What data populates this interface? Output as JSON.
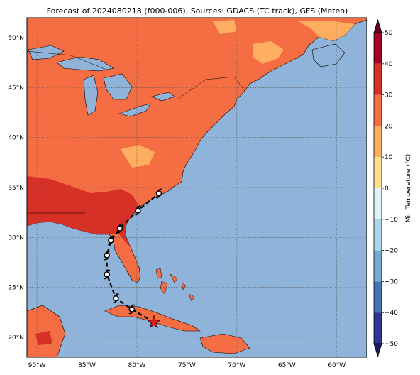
{
  "title": "Forecast of 2024080218 (f000-006), Sources: GDACS (TC track), GFS (Meteo)",
  "colors": {
    "ocean": "#8fb3d9",
    "land_20_30": "#f46d43",
    "land_30_40": "#d73027",
    "land_10_20": "#fdae61",
    "lake": "#8fb3d9",
    "track": "#000000",
    "storm_marker": "#e31a1c"
  },
  "map": {
    "lon_range": [
      -91,
      -57
    ],
    "lat_range": [
      18,
      52
    ],
    "lon_ticks": [
      {
        "value": -90,
        "label": "90°W"
      },
      {
        "value": -85,
        "label": "85°W"
      },
      {
        "value": -80,
        "label": "80°W"
      },
      {
        "value": -75,
        "label": "75°W"
      },
      {
        "value": -70,
        "label": "70°W"
      },
      {
        "value": -65,
        "label": "65°W"
      },
      {
        "value": -60,
        "label": "60°W"
      }
    ],
    "lat_ticks": [
      {
        "value": 20,
        "label": "20°N"
      },
      {
        "value": 25,
        "label": "25°N"
      },
      {
        "value": 30,
        "label": "30°N"
      },
      {
        "value": 35,
        "label": "35°N"
      },
      {
        "value": 40,
        "label": "40°N"
      },
      {
        "value": 45,
        "label": "45°N"
      },
      {
        "value": 50,
        "label": "50°N"
      }
    ],
    "grid": true
  },
  "colorbar": {
    "label": "Min Temperature (°C)",
    "ticks": [
      "50",
      "40",
      "30",
      "20",
      "10",
      "0",
      "−10",
      "−20",
      "−30",
      "−40",
      "−50"
    ],
    "bands": [
      "#a50026",
      "#d73027",
      "#f46d43",
      "#fdae61",
      "#fee090",
      "#e0f3f8",
      "#abd9e9",
      "#74add1",
      "#4575b4",
      "#313695"
    ],
    "top_extend": "#67001f",
    "bottom_extend": "#1a1a66"
  },
  "track": {
    "points": [
      {
        "lon": -78.3,
        "lat": 21.5
      },
      {
        "lon": -80.5,
        "lat": 22.8
      },
      {
        "lon": -82.1,
        "lat": 23.9
      },
      {
        "lon": -83.0,
        "lat": 26.3
      },
      {
        "lon": -83.0,
        "lat": 28.2
      },
      {
        "lon": -82.6,
        "lat": 29.7
      },
      {
        "lon": -81.7,
        "lat": 30.9
      },
      {
        "lon": -79.9,
        "lat": 32.7
      },
      {
        "lon": -77.8,
        "lat": 34.4
      }
    ],
    "current_position": {
      "lon": -78.3,
      "lat": 21.5
    }
  }
}
